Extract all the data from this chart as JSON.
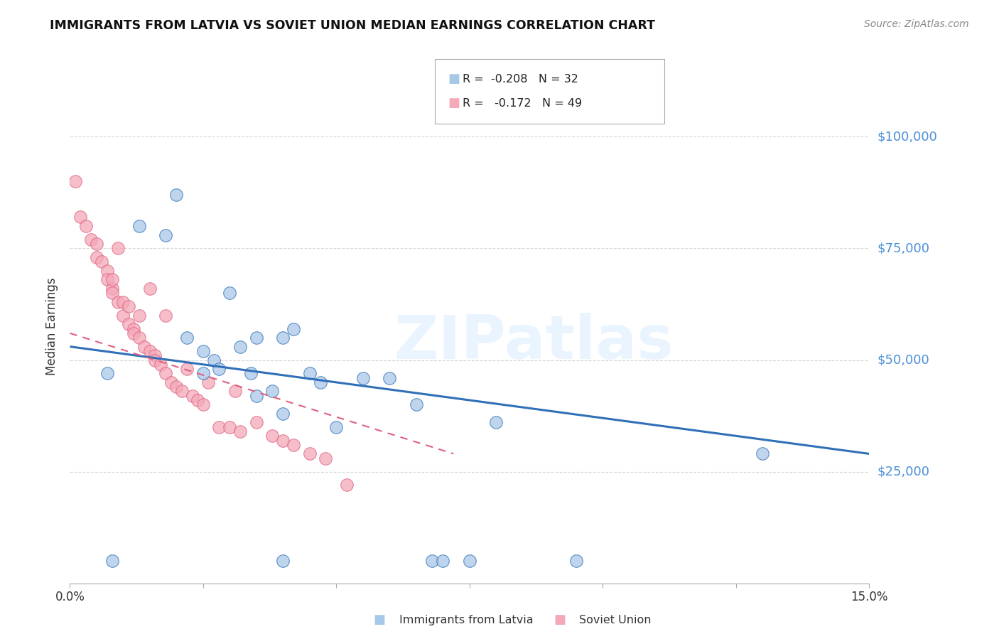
{
  "title": "IMMIGRANTS FROM LATVIA VS SOVIET UNION MEDIAN EARNINGS CORRELATION CHART",
  "source": "Source: ZipAtlas.com",
  "ylabel": "Median Earnings",
  "yticks": [
    25000,
    50000,
    75000,
    100000
  ],
  "ytick_labels": [
    "$25,000",
    "$50,000",
    "$75,000",
    "$100,000"
  ],
  "xlim": [
    0.0,
    0.15
  ],
  "ylim": [
    0,
    115000
  ],
  "watermark": "ZIPatlas",
  "latvia_R": "-0.208",
  "latvia_N": "32",
  "soviet_R": "-0.172",
  "soviet_N": "49",
  "latvia_color": "#a8c8e8",
  "soviet_color": "#f4a8b8",
  "latvia_line_color": "#3070b8",
  "soviet_line_color": "#e06080",
  "latvia_points_x": [
    0.007,
    0.013,
    0.018,
    0.022,
    0.025,
    0.027,
    0.028,
    0.03,
    0.032,
    0.034,
    0.035,
    0.038,
    0.04,
    0.04,
    0.042,
    0.045,
    0.047,
    0.05,
    0.055,
    0.06,
    0.068,
    0.07,
    0.075,
    0.08,
    0.095,
    0.04,
    0.02,
    0.008,
    0.025,
    0.035,
    0.065,
    0.13
  ],
  "latvia_points_y": [
    47000,
    80000,
    78000,
    55000,
    52000,
    50000,
    48000,
    65000,
    53000,
    47000,
    55000,
    43000,
    55000,
    38000,
    57000,
    47000,
    45000,
    35000,
    46000,
    46000,
    5000,
    5000,
    5000,
    36000,
    5000,
    5000,
    87000,
    5000,
    47000,
    42000,
    40000,
    29000
  ],
  "soviet_points_x": [
    0.001,
    0.002,
    0.003,
    0.004,
    0.005,
    0.005,
    0.006,
    0.007,
    0.007,
    0.008,
    0.008,
    0.009,
    0.009,
    0.01,
    0.01,
    0.011,
    0.011,
    0.012,
    0.012,
    0.013,
    0.013,
    0.014,
    0.015,
    0.015,
    0.016,
    0.016,
    0.017,
    0.018,
    0.018,
    0.019,
    0.02,
    0.021,
    0.022,
    0.023,
    0.024,
    0.025,
    0.026,
    0.028,
    0.03,
    0.031,
    0.032,
    0.035,
    0.038,
    0.04,
    0.042,
    0.045,
    0.048,
    0.052,
    0.008
  ],
  "soviet_points_y": [
    90000,
    82000,
    80000,
    77000,
    76000,
    73000,
    72000,
    70000,
    68000,
    66000,
    65000,
    63000,
    75000,
    63000,
    60000,
    62000,
    58000,
    57000,
    56000,
    60000,
    55000,
    53000,
    52000,
    66000,
    51000,
    50000,
    49000,
    60000,
    47000,
    45000,
    44000,
    43000,
    48000,
    42000,
    41000,
    40000,
    45000,
    35000,
    35000,
    43000,
    34000,
    36000,
    33000,
    32000,
    31000,
    29000,
    28000,
    22000,
    68000
  ],
  "latvia_trendline_x": [
    0.0,
    0.15
  ],
  "latvia_trendline_y": [
    53000,
    29000
  ],
  "soviet_trendline_x": [
    0.0,
    0.072
  ],
  "soviet_trendline_y": [
    56000,
    29000
  ],
  "background_color": "#ffffff",
  "grid_color": "#cccccc",
  "title_color": "#111111",
  "right_label_color": "#4a90d9",
  "legend_label1": "Immigrants from Latvia",
  "legend_label2": "Soviet Union"
}
